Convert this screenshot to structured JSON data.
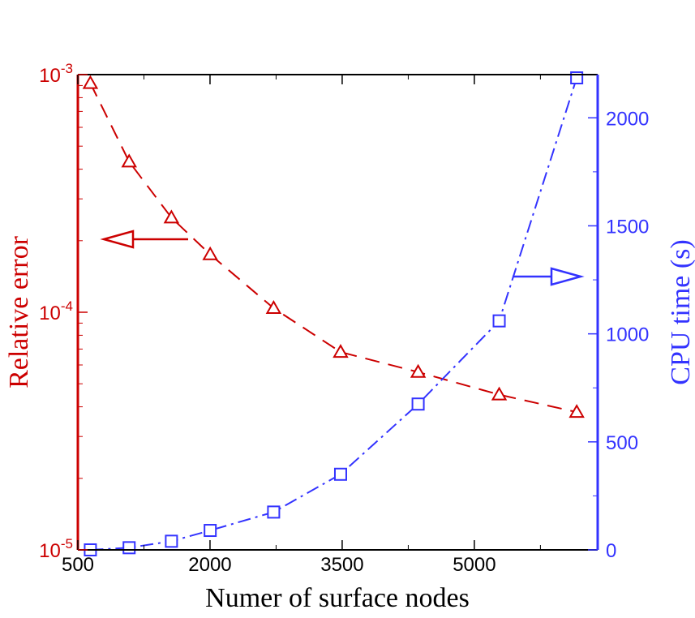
{
  "chart_data": {
    "type": "line",
    "xlabel": "Numer of surface nodes",
    "ylabel_left": "Relative error",
    "ylabel_right": "CPU time (s)",
    "xlim": [
      500,
      6400
    ],
    "x_ticks": [
      500,
      2000,
      3500,
      5000
    ],
    "x_tick_labels": [
      "500",
      "2000",
      "3500",
      "5000"
    ],
    "ylim_left": [
      1e-05,
      0.001
    ],
    "yscale_left": "log",
    "y_left_tick_labels": [
      {
        "value": 0.001,
        "base": "10",
        "exp": "-3"
      },
      {
        "value": 0.0001,
        "base": "10",
        "exp": "-4"
      },
      {
        "value": 1e-05,
        "base": "10",
        "exp": "-5"
      }
    ],
    "ylim_right": [
      0,
      2200
    ],
    "y_right_ticks": [
      0,
      500,
      1000,
      1500,
      2000
    ],
    "y_right_tick_labels": [
      "0",
      "500",
      "1000",
      "1500",
      "2000"
    ],
    "grid": false,
    "series": [
      {
        "axis": "left",
        "color": "#cc0000",
        "marker": "triangle",
        "line_style": "dashed",
        "x": [
          642,
          1082,
          1562,
          2002,
          2722,
          3482,
          4362,
          5282,
          6162
        ],
        "y": [
          0.00092,
          0.00043,
          0.00025,
          0.000175,
          0.000104,
          6.8e-05,
          5.6e-05,
          4.5e-05,
          3.8e-05
        ]
      },
      {
        "axis": "right",
        "color": "#3333ff",
        "marker": "square",
        "line_style": "dash-dot",
        "x": [
          642,
          1082,
          1562,
          2002,
          2722,
          3482,
          4362,
          5282,
          6162
        ],
        "y": [
          0,
          10,
          40,
          90,
          175,
          350,
          675,
          1060,
          2185
        ]
      }
    ],
    "annotations": [
      {
        "type": "arrow",
        "direction": "left",
        "color": "#cc0000",
        "meaning": "points to left axis"
      },
      {
        "type": "arrow",
        "direction": "right",
        "color": "#3333ff",
        "meaning": "points to right axis"
      }
    ]
  }
}
